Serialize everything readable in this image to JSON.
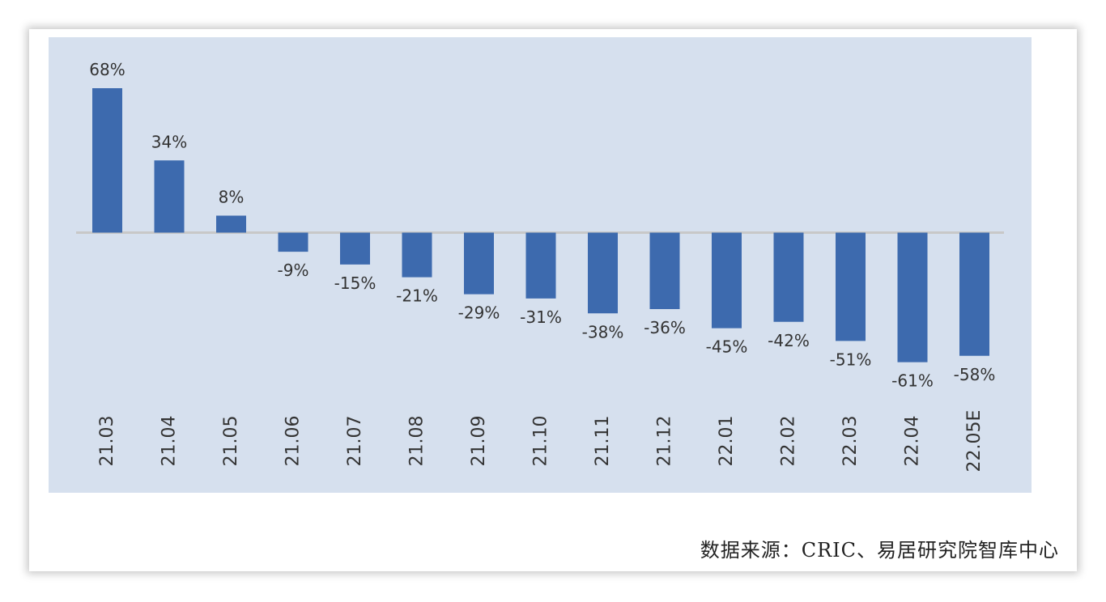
{
  "chart_data": {
    "type": "bar",
    "categories": [
      "21.03",
      "21.04",
      "21.05",
      "21.06",
      "21.07",
      "21.08",
      "21.09",
      "21.10",
      "21.11",
      "21.12",
      "22.01",
      "22.02",
      "22.03",
      "22.04",
      "22.05E"
    ],
    "values": [
      68,
      34,
      8,
      -9,
      -15,
      -21,
      -29,
      -31,
      -38,
      -36,
      -45,
      -42,
      -51,
      -61,
      -58
    ],
    "value_labels": [
      "68%",
      "34%",
      "8%",
      "-9%",
      "-15%",
      "-21%",
      "-29%",
      "-31%",
      "-38%",
      "-36%",
      "-45%",
      "-42%",
      "-51%",
      "-61%",
      "-58%"
    ],
    "ylim": [
      -61,
      68
    ],
    "grid": false,
    "legend": "none",
    "colors": {
      "bar": "#3d6aae",
      "plot_background": "#d6e0ee",
      "zero_line": "#c8c8c8",
      "text": "#333333"
    }
  },
  "source": "数据来源：CRIC、易居研究院智库中心"
}
